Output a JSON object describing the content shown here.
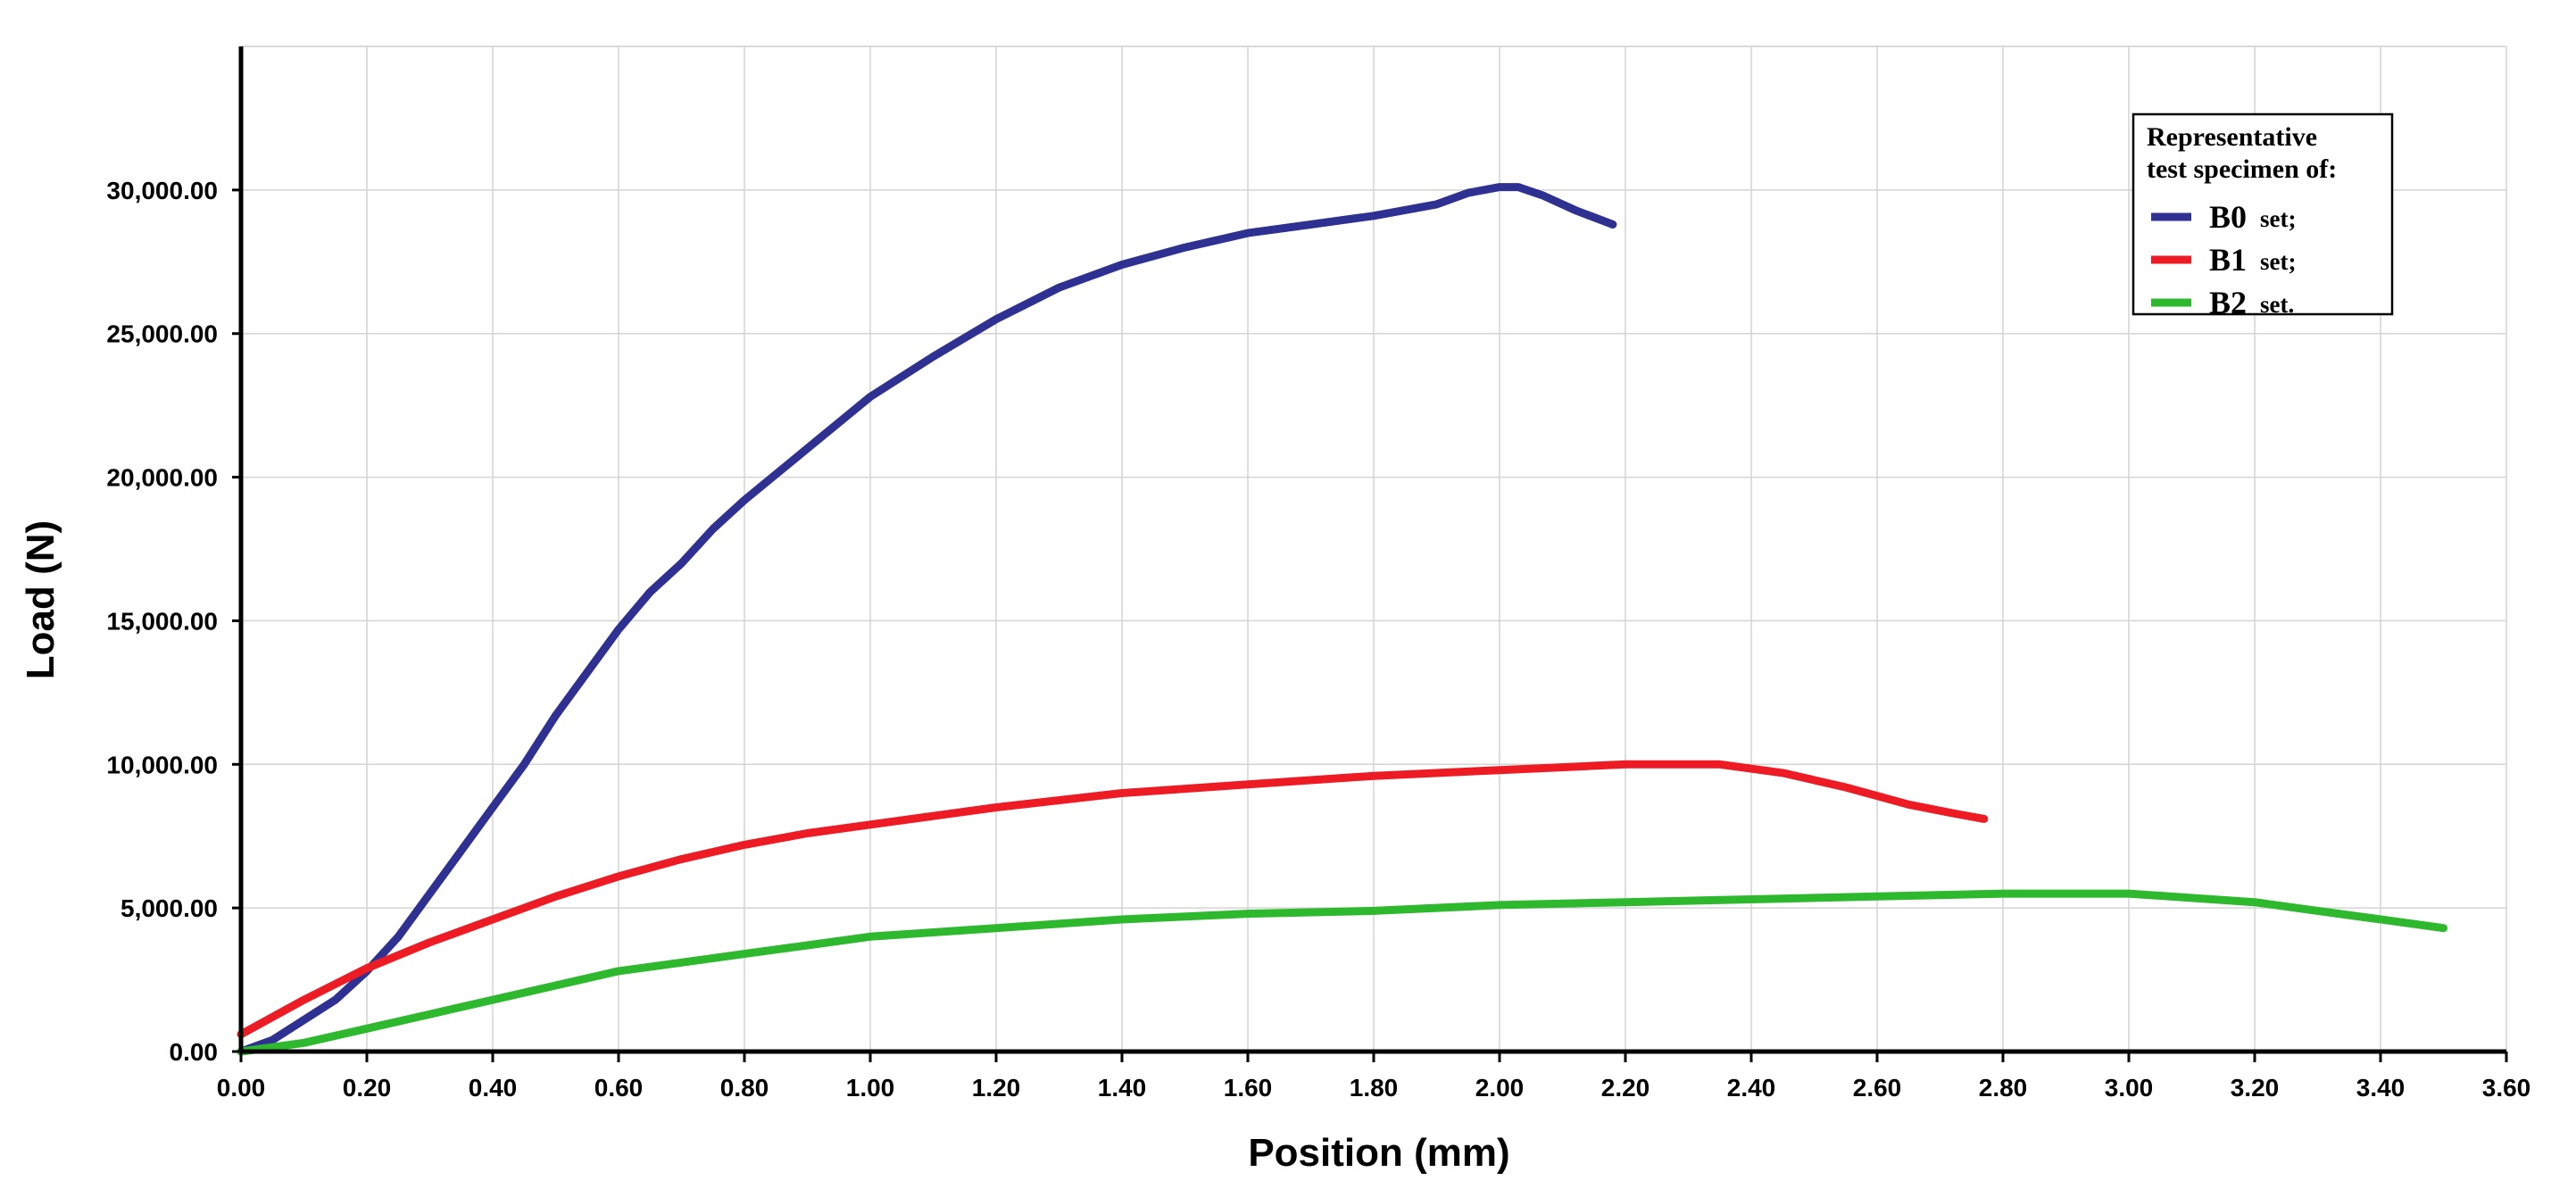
{
  "chart_data": {
    "type": "line",
    "title": "",
    "xlabel": "Position (mm)",
    "ylabel": "Load (N)",
    "xlim": [
      0,
      3.6
    ],
    "ylim": [
      0,
      35000
    ],
    "grid": true,
    "legend_position": "top-right",
    "x_ticks": [
      "0.00",
      "0.20",
      "0.40",
      "0.60",
      "0.80",
      "1.00",
      "1.20",
      "1.40",
      "1.60",
      "1.80",
      "2.00",
      "2.20",
      "2.40",
      "2.60",
      "2.80",
      "3.00",
      "3.20",
      "3.40",
      "3.60"
    ],
    "y_ticks": [
      "0.00",
      "5,000.00",
      "10,000.00",
      "15,000.00",
      "20,000.00",
      "25,000.00",
      "30,000.00"
    ],
    "legend": {
      "title_line1": "Representative",
      "title_line2": "test specimen of:"
    },
    "series": [
      {
        "name": "B0",
        "suffix": "set;",
        "color": "#2e3192",
        "x": [
          0.0,
          0.05,
          0.1,
          0.15,
          0.2,
          0.25,
          0.3,
          0.35,
          0.4,
          0.45,
          0.5,
          0.55,
          0.6,
          0.65,
          0.7,
          0.75,
          0.8,
          0.9,
          1.0,
          1.1,
          1.2,
          1.3,
          1.4,
          1.5,
          1.6,
          1.7,
          1.8,
          1.9,
          1.95,
          2.0,
          2.03,
          2.07,
          2.12,
          2.18
        ],
        "y": [
          0,
          400,
          1100,
          1800,
          2800,
          4000,
          5500,
          7000,
          8500,
          10000,
          11700,
          13200,
          14700,
          16000,
          17000,
          18200,
          19200,
          21000,
          22800,
          24200,
          25500,
          26600,
          27400,
          28000,
          28500,
          28800,
          29100,
          29500,
          29900,
          30100,
          30100,
          29800,
          29300,
          28800
        ]
      },
      {
        "name": "B1",
        "suffix": "set;",
        "color": "#ed1c24",
        "x": [
          0.0,
          0.1,
          0.2,
          0.3,
          0.4,
          0.5,
          0.6,
          0.7,
          0.8,
          0.9,
          1.0,
          1.2,
          1.4,
          1.6,
          1.8,
          2.0,
          2.2,
          2.35,
          2.45,
          2.55,
          2.65,
          2.72,
          2.77
        ],
        "y": [
          600,
          1800,
          2900,
          3800,
          4600,
          5400,
          6100,
          6700,
          7200,
          7600,
          7900,
          8500,
          9000,
          9300,
          9600,
          9800,
          10000,
          10000,
          9700,
          9200,
          8600,
          8300,
          8100
        ]
      },
      {
        "name": "B2",
        "suffix": "set.",
        "color": "#2eb82e",
        "x": [
          0.0,
          0.1,
          0.2,
          0.3,
          0.4,
          0.5,
          0.6,
          0.7,
          0.8,
          0.9,
          1.0,
          1.2,
          1.4,
          1.6,
          1.8,
          2.0,
          2.2,
          2.4,
          2.6,
          2.8,
          3.0,
          3.2,
          3.3,
          3.4,
          3.5
        ],
        "y": [
          0,
          300,
          800,
          1300,
          1800,
          2300,
          2800,
          3100,
          3400,
          3700,
          4000,
          4300,
          4600,
          4800,
          4900,
          5100,
          5200,
          5300,
          5400,
          5500,
          5500,
          5200,
          4900,
          4600,
          4300
        ]
      }
    ]
  }
}
